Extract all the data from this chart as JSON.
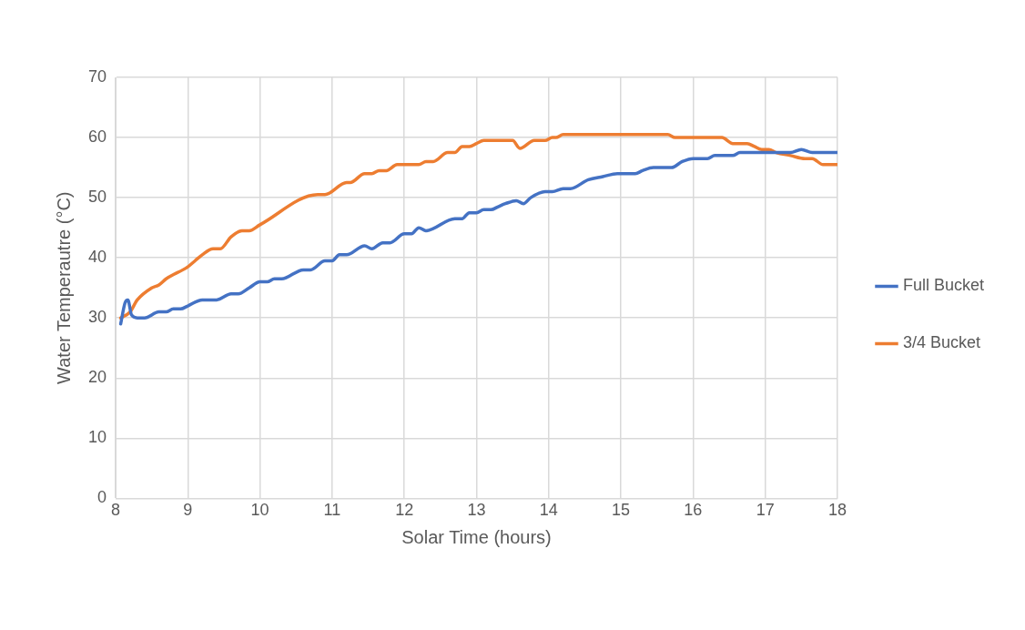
{
  "chart_data": {
    "type": "line",
    "xlabel": "Solar Time (hours)",
    "ylabel": "Water Temperautre (°C)",
    "xlim": [
      8,
      18
    ],
    "xticks": [
      8,
      9,
      10,
      11,
      12,
      13,
      14,
      15,
      16,
      17,
      18
    ],
    "ylim": [
      0,
      70
    ],
    "yticks": [
      0,
      10,
      20,
      30,
      40,
      50,
      60,
      70
    ],
    "grid": true,
    "legend": "right",
    "marker": "none",
    "line_style": "solid",
    "series": [
      {
        "name": "Full Bucket",
        "color": "#4472c4",
        "x": [
          8.07,
          8.13,
          8.17,
          8.22,
          8.3,
          8.4,
          8.6,
          8.7,
          8.8,
          8.9,
          9.0,
          9.2,
          9.4,
          9.6,
          9.7,
          9.85,
          10.0,
          10.1,
          10.2,
          10.3,
          10.6,
          10.7,
          10.9,
          11.0,
          11.1,
          11.2,
          11.45,
          11.55,
          11.7,
          11.8,
          12.0,
          12.1,
          12.2,
          12.3,
          12.7,
          12.8,
          12.9,
          13.0,
          13.1,
          13.2,
          13.3,
          13.4,
          13.55,
          13.65,
          13.75,
          13.95,
          14.05,
          14.2,
          14.3,
          14.55,
          14.75,
          14.95,
          15.2,
          15.3,
          15.45,
          15.7,
          15.85,
          16.0,
          16.2,
          16.3,
          16.55,
          16.65,
          17.35,
          17.5,
          17.65,
          18.0
        ],
        "values": [
          29,
          32.5,
          33,
          30.5,
          30,
          30,
          31,
          31,
          31.5,
          31.5,
          32,
          33,
          33,
          34,
          34,
          35,
          36,
          36,
          36.5,
          36.5,
          38,
          38,
          39.5,
          39.5,
          40.5,
          40.5,
          42,
          41.5,
          42.5,
          42.5,
          44,
          44,
          45,
          44.5,
          46.5,
          46.5,
          47.5,
          47.5,
          48,
          48,
          48.5,
          49,
          49.5,
          49,
          50,
          51,
          51,
          51.5,
          51.5,
          53,
          53.5,
          54,
          54,
          54.5,
          55,
          55,
          56,
          56.5,
          56.5,
          57,
          57,
          57.5,
          57.5,
          58,
          57.5,
          57.5
        ]
      },
      {
        "name": "3/4 Bucket",
        "color": "#ed7d31",
        "x": [
          8.07,
          8.2,
          8.3,
          8.5,
          8.6,
          8.7,
          9.0,
          9.1,
          9.2,
          9.35,
          9.45,
          9.6,
          9.75,
          9.85,
          10.0,
          10.8,
          10.9,
          11.2,
          11.25,
          11.45,
          11.55,
          11.65,
          11.75,
          11.9,
          12.2,
          12.3,
          12.4,
          12.6,
          12.7,
          12.8,
          12.9,
          13.0,
          13.1,
          13.5,
          13.6,
          13.8,
          13.95,
          14.05,
          14.1,
          14.2,
          15.65,
          15.75,
          16.4,
          16.55,
          16.75,
          16.85,
          16.95,
          17.05,
          17.15,
          17.35,
          17.55,
          17.65,
          17.8,
          18.0
        ],
        "values": [
          30,
          31,
          33,
          35,
          35.5,
          36.5,
          38.5,
          39.5,
          40.5,
          41.5,
          41.5,
          43.5,
          44.5,
          44.5,
          45.5,
          50.5,
          50.5,
          52.5,
          52.5,
          54,
          54,
          54.5,
          54.5,
          55.5,
          55.5,
          56,
          56,
          57.5,
          57.5,
          58.5,
          58.5,
          59,
          59.5,
          59.5,
          58.2,
          59.5,
          59.5,
          60,
          60,
          60.5,
          60.5,
          60,
          60,
          59,
          59,
          58.5,
          58,
          58,
          57.5,
          57,
          56.5,
          56.5,
          55.5,
          55.5
        ]
      }
    ]
  }
}
